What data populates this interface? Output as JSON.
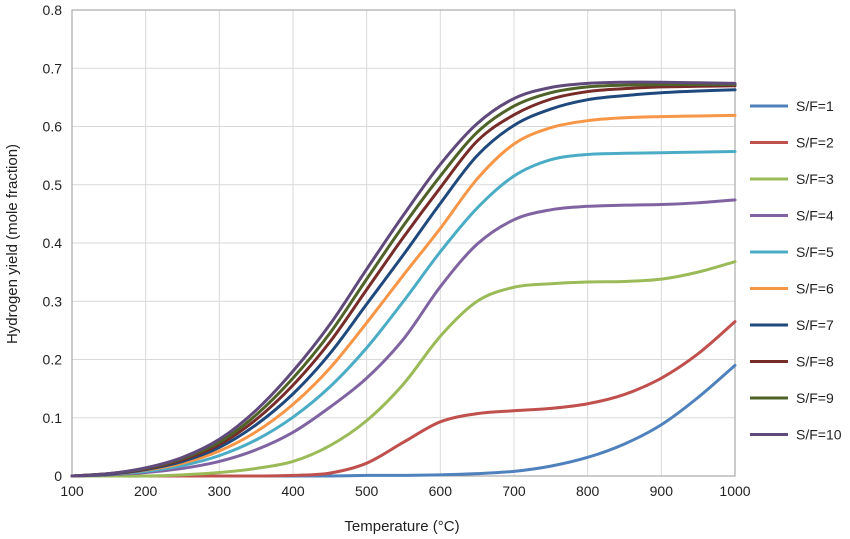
{
  "chart_data": {
    "type": "line",
    "title": "",
    "xlabel": "Temperature (°C)",
    "ylabel": "Hydrogen yield (mole fraction)",
    "xlim": [
      100,
      1000
    ],
    "ylim": [
      0,
      0.8
    ],
    "xticks": [
      "100",
      "200",
      "300",
      "400",
      "500",
      "600",
      "700",
      "800",
      "900",
      "1000"
    ],
    "yticks": [
      "0",
      "0.1",
      "0.2",
      "0.3",
      "0.4",
      "0.5",
      "0.6",
      "0.7",
      "0.8"
    ],
    "grid": true,
    "legend_position": "right",
    "x": [
      100,
      150,
      200,
      250,
      300,
      350,
      400,
      450,
      500,
      550,
      600,
      650,
      700,
      750,
      800,
      850,
      900,
      950,
      1000
    ],
    "series": [
      {
        "name": "S/F=1",
        "color": "#4f81bd",
        "values": [
          0,
          0,
          0,
          0,
          0,
          0,
          0,
          0,
          0.001,
          0.001,
          0.002,
          0.004,
          0.008,
          0.017,
          0.032,
          0.055,
          0.088,
          0.135,
          0.19
        ]
      },
      {
        "name": "S/F=2",
        "color": "#c0504d",
        "values": [
          0,
          0,
          0,
          0,
          0,
          0,
          0.001,
          0.005,
          0.022,
          0.058,
          0.093,
          0.107,
          0.112,
          0.116,
          0.124,
          0.14,
          0.168,
          0.21,
          0.265
        ]
      },
      {
        "name": "S/F=3",
        "color": "#9bbb59",
        "values": [
          0,
          0,
          0,
          0.002,
          0.006,
          0.013,
          0.025,
          0.052,
          0.095,
          0.158,
          0.24,
          0.3,
          0.324,
          0.33,
          0.333,
          0.334,
          0.338,
          0.35,
          0.368
        ]
      },
      {
        "name": "S/F=4",
        "color": "#8064a2",
        "values": [
          0,
          0.002,
          0.006,
          0.013,
          0.025,
          0.045,
          0.075,
          0.118,
          0.168,
          0.235,
          0.325,
          0.398,
          0.44,
          0.457,
          0.463,
          0.465,
          0.466,
          0.469,
          0.474
        ]
      },
      {
        "name": "S/F=5",
        "color": "#4bacc6",
        "values": [
          0,
          0.003,
          0.008,
          0.018,
          0.035,
          0.062,
          0.101,
          0.153,
          0.22,
          0.3,
          0.385,
          0.46,
          0.515,
          0.543,
          0.552,
          0.554,
          0.555,
          0.556,
          0.557
        ]
      },
      {
        "name": "S/F=6",
        "color": "#f79646",
        "values": [
          0,
          0.003,
          0.01,
          0.022,
          0.043,
          0.076,
          0.123,
          0.185,
          0.263,
          0.345,
          0.425,
          0.51,
          0.57,
          0.598,
          0.61,
          0.615,
          0.617,
          0.618,
          0.619
        ]
      },
      {
        "name": "S/F=7",
        "color": "#1f497d",
        "values": [
          0,
          0.003,
          0.011,
          0.025,
          0.049,
          0.088,
          0.141,
          0.21,
          0.295,
          0.38,
          0.468,
          0.55,
          0.602,
          0.63,
          0.646,
          0.653,
          0.658,
          0.661,
          0.663
        ]
      },
      {
        "name": "S/F=8",
        "color": "#772c2a",
        "values": [
          0,
          0.004,
          0.012,
          0.028,
          0.054,
          0.097,
          0.156,
          0.23,
          0.32,
          0.41,
          0.495,
          0.575,
          0.62,
          0.647,
          0.66,
          0.665,
          0.668,
          0.669,
          0.67
        ]
      },
      {
        "name": "S/F=9",
        "color": "#4f6228",
        "values": [
          0,
          0.004,
          0.013,
          0.03,
          0.058,
          0.105,
          0.168,
          0.245,
          0.338,
          0.43,
          0.515,
          0.59,
          0.635,
          0.658,
          0.668,
          0.671,
          0.672,
          0.672,
          0.672
        ]
      },
      {
        "name": "S/F=10",
        "color": "#604a7b",
        "values": [
          0,
          0.004,
          0.014,
          0.032,
          0.063,
          0.113,
          0.18,
          0.26,
          0.355,
          0.448,
          0.535,
          0.605,
          0.648,
          0.667,
          0.674,
          0.676,
          0.676,
          0.675,
          0.674
        ]
      }
    ]
  }
}
